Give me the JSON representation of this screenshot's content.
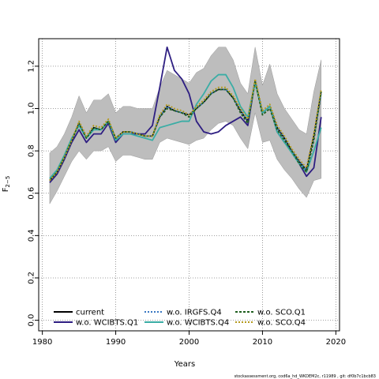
{
  "chart_data": {
    "type": "line",
    "xlabel": "Years",
    "ylabel_main": "F",
    "ylabel_sub": "2−5",
    "xlim": [
      1979.5,
      2020.5
    ],
    "ylim": [
      -0.05,
      1.33
    ],
    "xticks": [
      "1980",
      "1990",
      "2000",
      "2010",
      "2020"
    ],
    "yticks": [
      "0.0",
      "0.2",
      "0.4",
      "0.6",
      "0.8",
      "1.0",
      "1.2"
    ],
    "grid": true,
    "legend_position": "bottom-left",
    "x": [
      1981,
      1982,
      1983,
      1984,
      1985,
      1986,
      1987,
      1988,
      1989,
      1990,
      1991,
      1992,
      1993,
      1994,
      1995,
      1996,
      1997,
      1998,
      1999,
      2000,
      2001,
      2002,
      2003,
      2004,
      2005,
      2006,
      2007,
      2008,
      2009,
      2010,
      2011,
      2012,
      2013,
      2014,
      2015,
      2016,
      2017,
      2018
    ],
    "band": {
      "upper": [
        0.79,
        0.82,
        0.88,
        0.96,
        1.06,
        0.98,
        1.04,
        1.04,
        1.07,
        0.98,
        1.01,
        1.01,
        1.0,
        1.0,
        1.0,
        1.1,
        1.18,
        1.16,
        1.14,
        1.12,
        1.17,
        1.19,
        1.25,
        1.29,
        1.29,
        1.23,
        1.12,
        1.07,
        1.29,
        1.11,
        1.21,
        1.07,
        1.0,
        0.95,
        0.9,
        0.88,
        1.08,
        1.23
      ],
      "lower": [
        0.55,
        0.61,
        0.68,
        0.75,
        0.8,
        0.76,
        0.8,
        0.8,
        0.82,
        0.75,
        0.78,
        0.78,
        0.77,
        0.76,
        0.76,
        0.84,
        0.86,
        0.85,
        0.84,
        0.83,
        0.85,
        0.86,
        0.9,
        0.93,
        0.94,
        0.92,
        0.86,
        0.81,
        0.98,
        0.84,
        0.85,
        0.76,
        0.71,
        0.67,
        0.62,
        0.58,
        0.66,
        0.67
      ]
    },
    "series": [
      {
        "name": "current",
        "color": "#000000",
        "dash": "",
        "values": [
          0.66,
          0.7,
          0.77,
          0.85,
          0.93,
          0.86,
          0.91,
          0.9,
          0.94,
          0.86,
          0.89,
          0.89,
          0.88,
          0.87,
          0.87,
          0.96,
          1.01,
          0.99,
          0.98,
          0.97,
          1.0,
          1.03,
          1.07,
          1.09,
          1.09,
          1.05,
          0.99,
          0.94,
          1.13,
          0.98,
          1.01,
          0.91,
          0.86,
          0.8,
          0.75,
          0.71,
          0.87,
          1.08
        ]
      },
      {
        "name": "w.o. WCIBTS.Q1",
        "color": "#2e1e82",
        "dash": "",
        "values": [
          0.65,
          0.69,
          0.76,
          0.84,
          0.9,
          0.84,
          0.88,
          0.88,
          0.93,
          0.84,
          0.88,
          0.88,
          0.88,
          0.88,
          0.92,
          1.1,
          1.29,
          1.18,
          1.14,
          1.07,
          0.94,
          0.89,
          0.88,
          0.89,
          0.92,
          0.94,
          0.96,
          0.92,
          1.13,
          0.98,
          1.01,
          0.89,
          0.84,
          0.8,
          0.74,
          0.68,
          0.72,
          0.96
        ]
      },
      {
        "name": "w.o. IRGFS.Q4",
        "color": "#3a78c2",
        "dash": "2,2",
        "values": [
          0.66,
          0.7,
          0.77,
          0.85,
          0.93,
          0.86,
          0.91,
          0.9,
          0.94,
          0.86,
          0.89,
          0.89,
          0.88,
          0.87,
          0.87,
          0.96,
          1.01,
          0.99,
          0.98,
          0.97,
          1.0,
          1.03,
          1.07,
          1.09,
          1.09,
          1.05,
          0.99,
          0.94,
          1.13,
          0.98,
          1.01,
          0.91,
          0.86,
          0.8,
          0.75,
          0.71,
          0.86,
          1.07
        ]
      },
      {
        "name": "w.o. WCIBTS.Q4",
        "color": "#3aada5",
        "dash": "",
        "values": [
          0.67,
          0.71,
          0.78,
          0.86,
          0.92,
          0.86,
          0.9,
          0.9,
          0.94,
          0.85,
          0.88,
          0.88,
          0.87,
          0.86,
          0.85,
          0.91,
          0.92,
          0.93,
          0.94,
          0.94,
          1.02,
          1.07,
          1.13,
          1.16,
          1.16,
          1.1,
          1.01,
          0.96,
          1.12,
          0.98,
          1.01,
          0.89,
          0.84,
          0.79,
          0.74,
          0.7,
          0.8,
          0.91
        ]
      },
      {
        "name": "w.o. SCO.Q1",
        "color": "#1f5f1f",
        "dash": "3,2",
        "values": [
          0.66,
          0.7,
          0.77,
          0.85,
          0.93,
          0.86,
          0.91,
          0.9,
          0.94,
          0.86,
          0.89,
          0.89,
          0.88,
          0.87,
          0.87,
          0.96,
          1.0,
          0.99,
          0.98,
          0.96,
          1.0,
          1.03,
          1.07,
          1.09,
          1.09,
          1.05,
          0.98,
          0.93,
          1.13,
          0.97,
          1.0,
          0.9,
          0.85,
          0.8,
          0.74,
          0.7,
          0.85,
          1.08
        ]
      },
      {
        "name": "w.o. SCO.Q4",
        "color": "#b49a1c",
        "dash": "2,2",
        "values": [
          0.66,
          0.7,
          0.77,
          0.85,
          0.94,
          0.87,
          0.92,
          0.91,
          0.95,
          0.86,
          0.89,
          0.89,
          0.88,
          0.87,
          0.87,
          0.97,
          1.02,
          1.0,
          0.99,
          0.97,
          1.01,
          1.04,
          1.08,
          1.1,
          1.1,
          1.06,
          1.0,
          0.95,
          1.14,
          0.99,
          1.02,
          0.92,
          0.87,
          0.81,
          0.76,
          0.72,
          0.88,
          1.09
        ]
      }
    ],
    "band_color": "#bdbdbd"
  },
  "footer": "stockassessment.org, cod6a_hd_WKDEM2c, r11989 , git: df0b7c1bcb83"
}
